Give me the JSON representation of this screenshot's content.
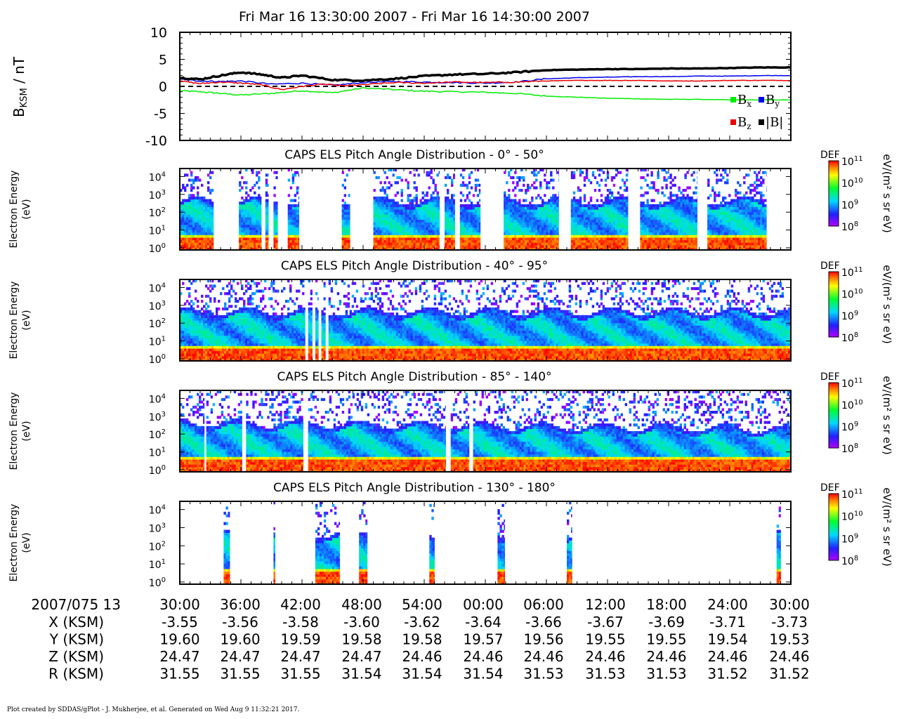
{
  "title": "Fri Mar 16 13:30:00 2007 - Fri Mar 16 14:30:00 2007",
  "footer": "Plot created by SDDAS/gPlot - J. Mukherjee, et al.  Generated on Wed Aug 9 11:32:21 2017.",
  "colors": {
    "bx": "#00ee00",
    "by": "#0000ee",
    "bz": "#ee0000",
    "bmag": "#000000"
  },
  "chart_data": [
    {
      "type": "line",
      "ylabel": "B",
      "ylabel_sub": "KSM",
      "ylabel_unit": " / nT",
      "ylim": [
        -10,
        10
      ],
      "yticks": [
        "10",
        "5",
        "0",
        "-5",
        "-10"
      ],
      "zero_line": "dashed",
      "legend_position": "bottom-right",
      "series": [
        {
          "name": "B",
          "sub": "x",
          "color": "bx",
          "x_min": [
            0,
            2,
            4,
            6,
            9,
            12,
            15,
            18,
            21,
            24,
            27,
            30,
            33,
            36,
            39,
            42,
            45,
            48,
            51,
            54,
            57,
            60
          ],
          "values": [
            -0.8,
            -1.0,
            -1.3,
            -1.6,
            -1.3,
            -0.8,
            -1.2,
            -0.3,
            -0.6,
            -0.9,
            -1.0,
            -1.1,
            -1.3,
            -1.8,
            -2.0,
            -2.2,
            -2.3,
            -2.4,
            -2.4,
            -2.5,
            -2.5,
            -2.5
          ]
        },
        {
          "name": "B",
          "sub": "y",
          "color": "by",
          "x_min": [
            0,
            2,
            4,
            6,
            9,
            12,
            15,
            18,
            21,
            24,
            27,
            30,
            33,
            36,
            39,
            42,
            45,
            48,
            51,
            54,
            57,
            60
          ],
          "values": [
            1.3,
            1.0,
            0.9,
            1.0,
            0.4,
            0.6,
            0.2,
            0.7,
            0.9,
            0.8,
            0.7,
            0.6,
            0.8,
            1.4,
            1.6,
            1.7,
            1.8,
            1.8,
            1.9,
            1.9,
            2.0,
            2.0
          ]
        },
        {
          "name": "B",
          "sub": "z",
          "color": "bz",
          "x_min": [
            0,
            2,
            4,
            6,
            8,
            10,
            12,
            14,
            16,
            18,
            21,
            24,
            27,
            30,
            33,
            36,
            39,
            42,
            45,
            48,
            51,
            54,
            57,
            60
          ],
          "values": [
            1.0,
            0.5,
            0.8,
            0.6,
            0.3,
            -0.6,
            0.0,
            0.4,
            0.1,
            0.3,
            0.7,
            0.6,
            0.8,
            0.7,
            0.8,
            1.0,
            1.1,
            1.1,
            1.1,
            1.0,
            1.0,
            1.1,
            1.1,
            1.1
          ]
        },
        {
          "name": "|B|",
          "sub": "",
          "color": "bmag",
          "x_min": [
            0,
            2,
            4,
            6,
            8,
            10,
            12,
            15,
            18,
            21,
            24,
            27,
            30,
            33,
            36,
            39,
            42,
            45,
            48,
            51,
            54,
            57,
            60
          ],
          "values": [
            1.6,
            1.3,
            2.0,
            2.6,
            2.2,
            1.6,
            2.0,
            1.2,
            1.1,
            1.4,
            1.9,
            2.2,
            2.3,
            2.6,
            3.0,
            3.1,
            3.2,
            3.2,
            3.3,
            3.3,
            3.4,
            3.5,
            3.5
          ]
        }
      ]
    },
    {
      "type": "heatmap",
      "title": "CAPS ELS Pitch Angle Distribution - 0° - 50°",
      "ylabel": "Electron Energy",
      "ylabel2": "(eV)",
      "yticks": [
        "10",
        "10",
        "10",
        "10",
        "10"
      ],
      "ytick_exp": [
        "4",
        "3",
        "2",
        "1",
        "0"
      ],
      "coverage_min": [
        [
          0,
          3.3
        ],
        [
          5.8,
          8.0
        ],
        [
          8.4,
          8.7
        ],
        [
          9.2,
          9.6
        ],
        [
          10.6,
          11.7
        ],
        [
          15.9,
          16.7
        ],
        [
          19.0,
          25.5
        ],
        [
          26.0,
          27.0
        ],
        [
          27.5,
          29.5
        ],
        [
          31.8,
          37.2
        ],
        [
          38.4,
          44.0
        ],
        [
          45.2,
          50.8
        ],
        [
          51.8,
          57.6
        ]
      ],
      "colorbar": {
        "label": "DEF",
        "unit": "eV/(m² s sr eV)",
        "ticks": [
          "10",
          "10",
          "10",
          "10"
        ],
        "tick_exp": [
          "11",
          "10",
          "9",
          "8"
        ]
      }
    },
    {
      "type": "heatmap",
      "title": "CAPS ELS Pitch Angle Distribution - 40° - 95°",
      "ylabel": "Electron Energy",
      "ylabel2": "(eV)",
      "yticks": [
        "10",
        "10",
        "10",
        "10",
        "10"
      ],
      "ytick_exp": [
        "4",
        "3",
        "2",
        "1",
        "0"
      ],
      "coverage_min": [
        [
          0,
          12.3
        ],
        [
          12.6,
          13.0
        ],
        [
          13.3,
          13.6
        ],
        [
          13.9,
          14.3
        ],
        [
          14.6,
          60
        ]
      ],
      "colorbar": {
        "label": "DEF",
        "unit": "eV/(m² s sr eV)",
        "ticks": [
          "10",
          "10",
          "10",
          "10"
        ],
        "tick_exp": [
          "11",
          "10",
          "9",
          "8"
        ]
      }
    },
    {
      "type": "heatmap",
      "title": "CAPS ELS Pitch Angle Distribution - 85° - 140°",
      "ylabel": "Electron Energy",
      "ylabel2": "(eV)",
      "yticks": [
        "10",
        "10",
        "10",
        "10",
        "10"
      ],
      "ytick_exp": [
        "4",
        "3",
        "2",
        "1",
        "0"
      ],
      "coverage_min": [
        [
          0,
          2.4
        ],
        [
          2.6,
          6.1
        ],
        [
          6.5,
          12.1
        ],
        [
          12.6,
          26.1
        ],
        [
          26.6,
          28.4
        ],
        [
          28.8,
          60
        ]
      ],
      "colorbar": {
        "label": "DEF",
        "unit": "eV/(m² s sr eV)",
        "ticks": [
          "10",
          "10",
          "10",
          "10"
        ],
        "tick_exp": [
          "11",
          "10",
          "9",
          "8"
        ]
      }
    },
    {
      "type": "heatmap",
      "title": "CAPS ELS Pitch Angle Distribution - 130° - 180°",
      "ylabel": "Electron Energy",
      "ylabel2": "(eV)",
      "yticks": [
        "10",
        "10",
        "10",
        "10",
        "10"
      ],
      "ytick_exp": [
        "4",
        "3",
        "2",
        "1",
        "0"
      ],
      "coverage_min": [
        [
          4.3,
          4.9
        ],
        [
          9.2,
          9.35
        ],
        [
          13.3,
          15.7
        ],
        [
          17.6,
          18.4
        ],
        [
          24.5,
          25.0
        ],
        [
          31.2,
          31.9
        ],
        [
          38.0,
          38.5
        ],
        [
          58.6,
          59.0
        ]
      ],
      "colorbar": {
        "label": "DEF",
        "unit": "eV/(m² s sr eV)",
        "ticks": [
          "10",
          "10",
          "10",
          "10"
        ],
        "tick_exp": [
          "11",
          "10",
          "9",
          "8"
        ]
      }
    }
  ],
  "ephemeris": {
    "header_label": "2007/075 13",
    "times": [
      "30:00",
      "36:00",
      "42:00",
      "48:00",
      "54:00",
      "00:00",
      "06:00",
      "12:00",
      "18:00",
      "24:00",
      "30:00"
    ],
    "rows": [
      {
        "label": "X (KSM)",
        "values": [
          "-3.55",
          "-3.56",
          "-3.58",
          "-3.60",
          "-3.62",
          "-3.64",
          "-3.66",
          "-3.67",
          "-3.69",
          "-3.71",
          "-3.73"
        ]
      },
      {
        "label": "Y (KSM)",
        "values": [
          "19.60",
          "19.60",
          "19.59",
          "19.58",
          "19.58",
          "19.57",
          "19.56",
          "19.55",
          "19.55",
          "19.54",
          "19.53"
        ]
      },
      {
        "label": "Z (KSM)",
        "values": [
          "24.47",
          "24.47",
          "24.47",
          "24.47",
          "24.46",
          "24.46",
          "24.46",
          "24.46",
          "24.46",
          "24.46",
          "24.46"
        ]
      },
      {
        "label": "R (KSM)",
        "values": [
          "31.55",
          "31.55",
          "31.55",
          "31.54",
          "31.54",
          "31.54",
          "31.53",
          "31.53",
          "31.53",
          "31.52",
          "31.52"
        ]
      }
    ]
  }
}
